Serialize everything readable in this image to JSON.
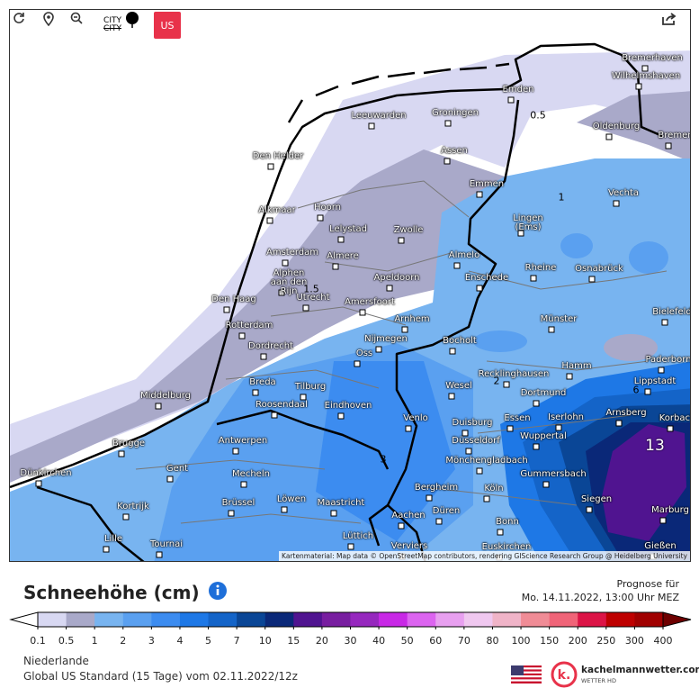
{
  "toolbar": {
    "city": "CITY",
    "units": "US"
  },
  "map": {
    "cities": [
      "Bremerhaven",
      "Wilhelmshaven",
      "Emden",
      "Leeuwarden",
      "Groningen",
      "Oldenburg",
      "Bremen",
      "Den Helder",
      "Assen",
      "Emmen",
      "Vechta",
      "Alkmaar",
      "Hoorn",
      "Lingen (Ems)",
      "Lelystad",
      "Zwolle",
      "Almelo",
      "Amsterdam",
      "Almere",
      "Rheine",
      "Osnabrück",
      "Alphen aan den Rijn",
      "Utrecht",
      "Apeldoorn",
      "Enschede",
      "Den Haag",
      "Amersfoort",
      "Bielefeld",
      "Rotterdam",
      "Arnhem",
      "Münster",
      "Nijmegen",
      "Bocholt",
      "Dordrecht",
      "Oss",
      "Paderborn",
      "Hamm",
      "Recklinghausen",
      "Breda",
      "Tilburg",
      "Lippstadt",
      "Wesel",
      "Dortmund",
      "Middelburg",
      "Roosendaal",
      "Eindhoven",
      "Arnsberg",
      "Venlo",
      "Iserlohn",
      "Essen",
      "Duisburg",
      "Korbach",
      "Antwerpen",
      "Düsseldorf",
      "Wuppertal",
      "Brugge",
      "Gent",
      "Mönchengladbach",
      "Dünkirchen",
      "Mecheln",
      "Gummersbach",
      "Bergheim",
      "Köln",
      "Siegen",
      "Kortrijk",
      "Brüssel",
      "Löwen",
      "Maastricht",
      "Marburg",
      "Aachen",
      "Düren",
      "Bonn",
      "Lille",
      "Tournai",
      "Lüttich",
      "Verviers",
      "Euskirchen",
      "Gießen"
    ],
    "contour_labels": [
      "0.5",
      "1",
      "1.5",
      "2",
      "3",
      "6",
      "13"
    ],
    "attribution": "Kartenmaterial: Map data © OpenStreetMap contributors, rendering GIScience Research Group @ Heidelberg University"
  },
  "legend": {
    "title": "Schneehöhe (cm)",
    "forecast_label": "Prognose für",
    "forecast_time": "Mo. 14.11.2022, 13:00 Uhr MEZ",
    "levels": [
      0.1,
      0.5,
      1,
      2,
      3,
      4,
      5,
      7,
      10,
      15,
      20,
      30,
      40,
      50,
      60,
      70,
      80,
      100,
      150,
      200,
      250,
      300,
      400
    ],
    "colors": [
      "#d8d8f2",
      "#a9a9c9",
      "#78b4f0",
      "#5aa0f0",
      "#3c8cf0",
      "#1e78e6",
      "#1464c8",
      "#0a4696",
      "#0a2878",
      "#501490",
      "#781ea0",
      "#9628be",
      "#c828e6",
      "#dc64f0",
      "#e8a0f0",
      "#f0c8f0",
      "#f0b4c8",
      "#f08c96",
      "#f06478",
      "#dc1446",
      "#be0000",
      "#a00000"
    ],
    "under_color": "#ffffff",
    "over_color": "#6e0000"
  },
  "footer": {
    "region": "Niederlande",
    "model": "Global US Standard (15 Tage) vom 02.11.2022/12z",
    "brand": "kachelmannwetter.com",
    "brand_sub": "WETTER HD"
  }
}
